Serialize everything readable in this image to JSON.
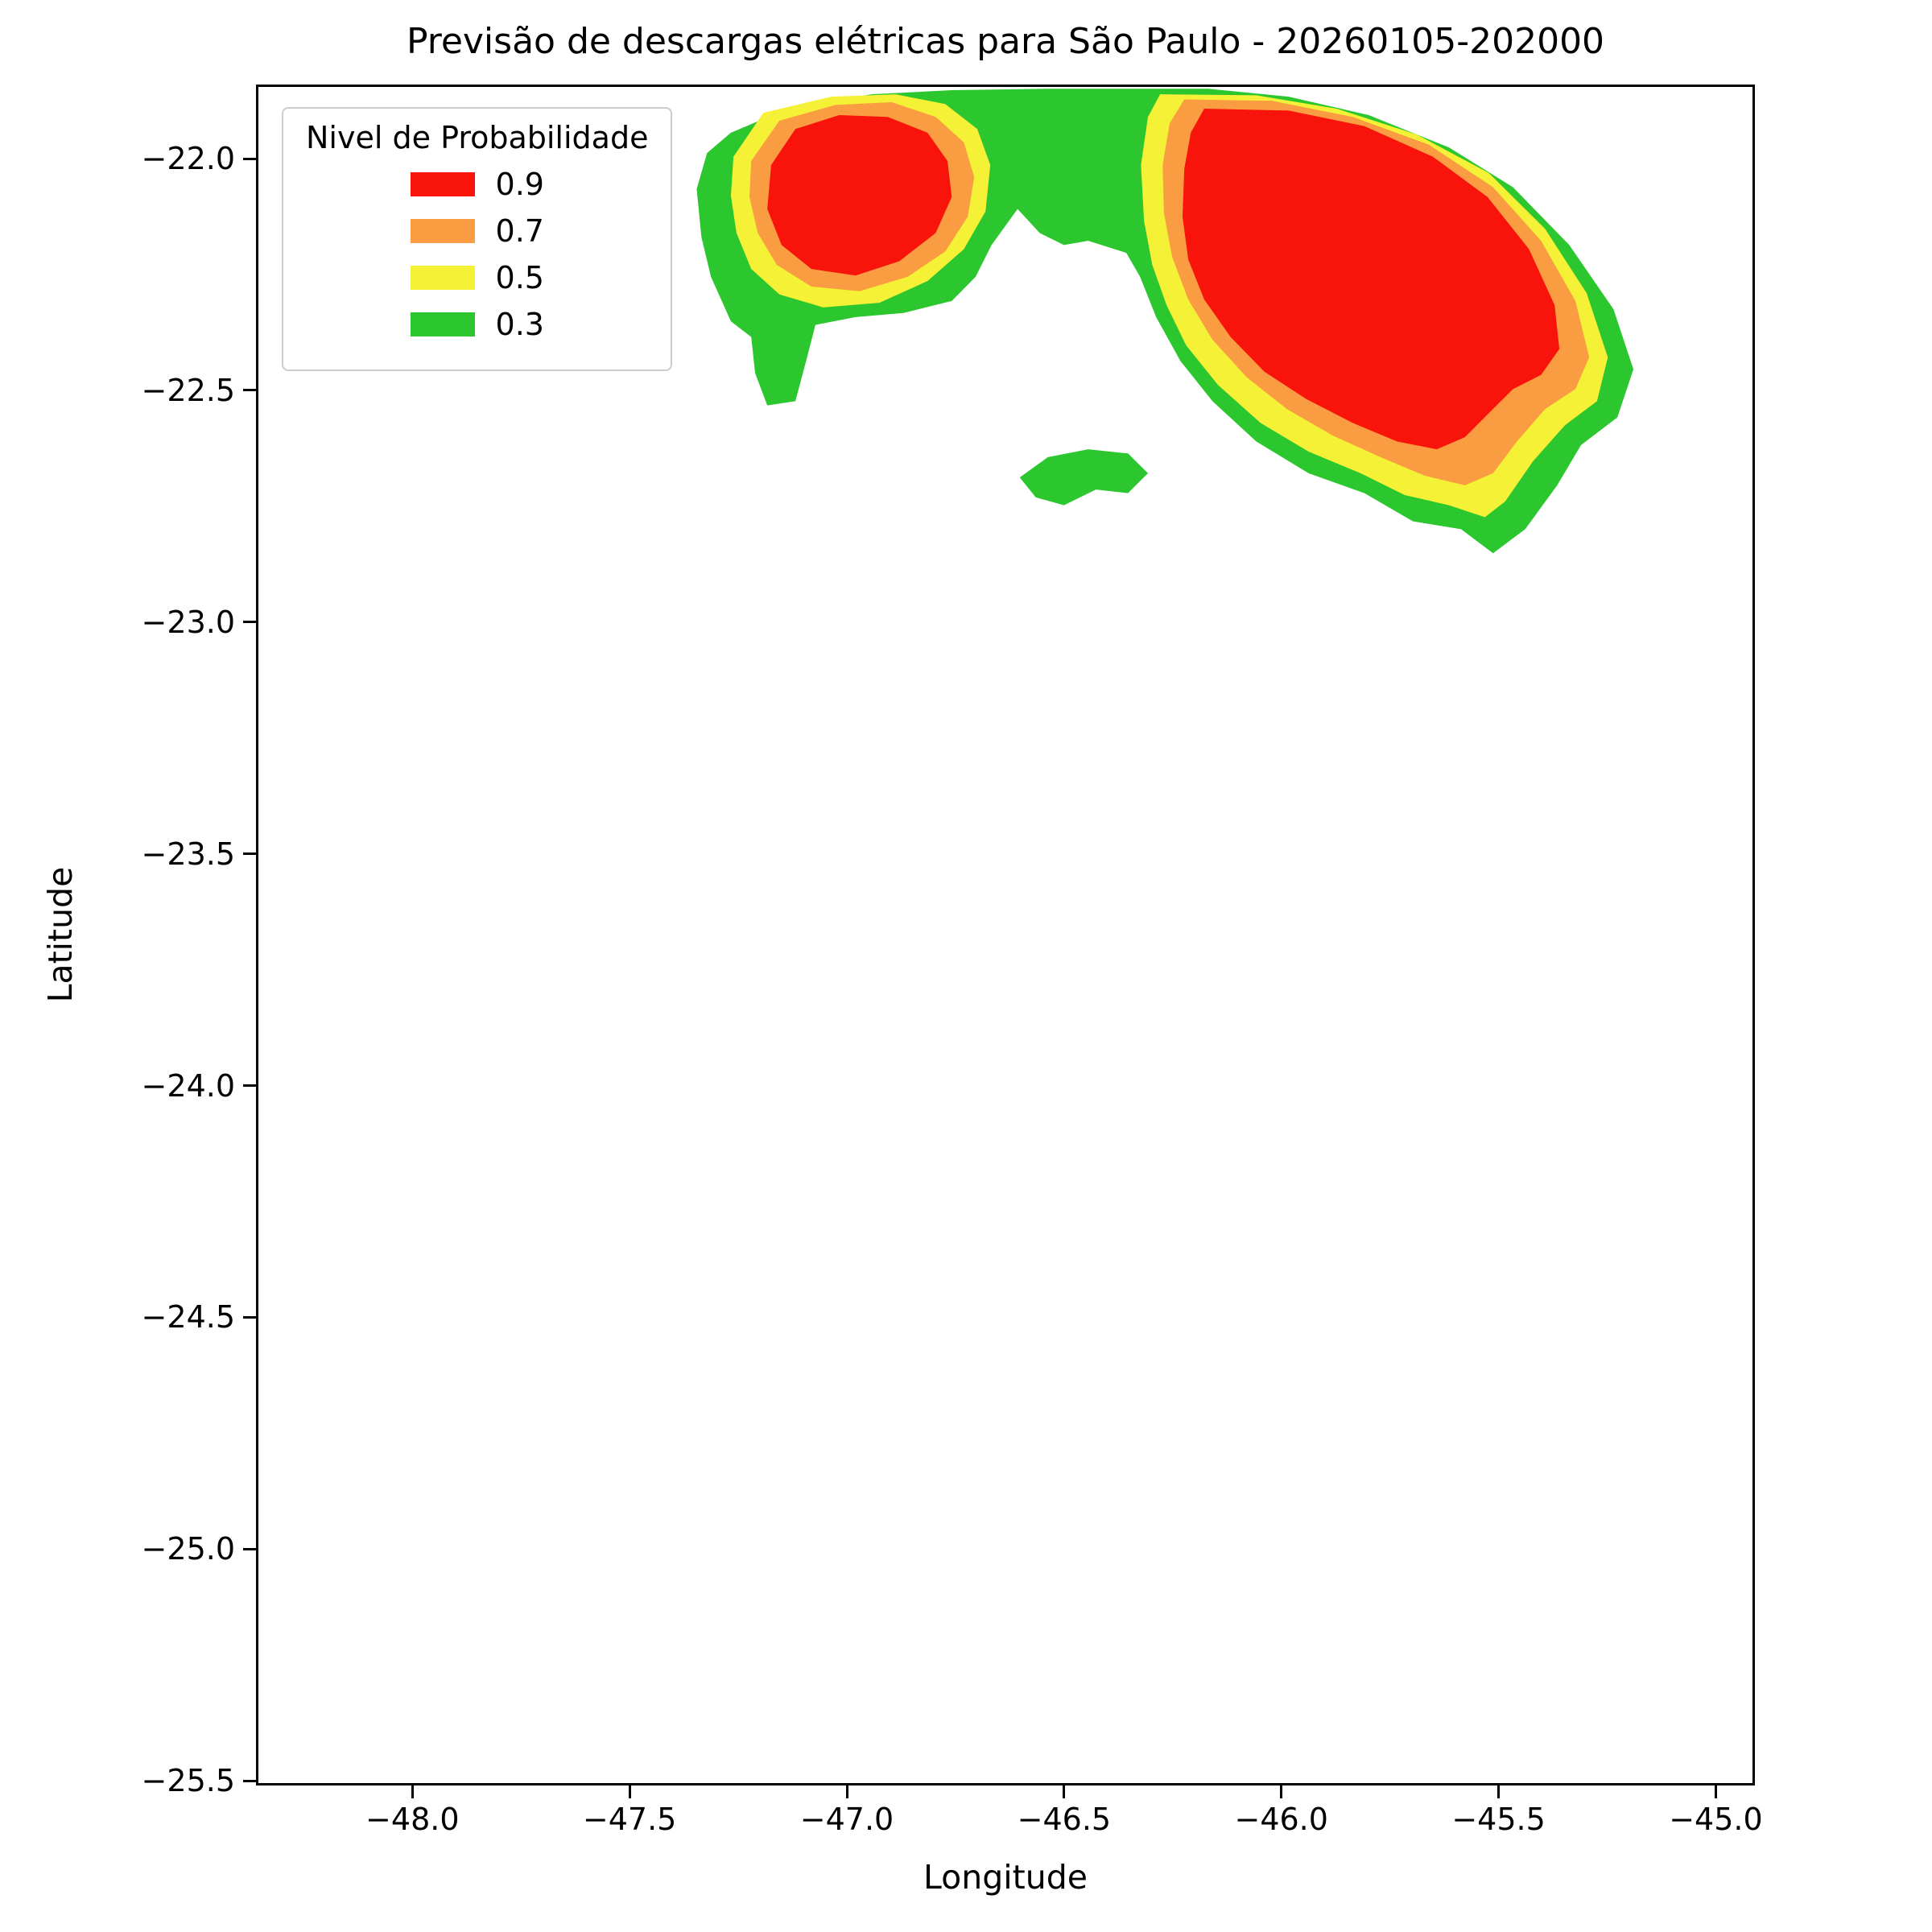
{
  "chart_data": {
    "type": "contour-map",
    "title": "Previsão de descargas elétricas para São Paulo - 20260105-202000",
    "xlabel": "Longitude",
    "ylabel": "Latitude",
    "xlim": [
      -48.36,
      -44.91
    ],
    "ylim": [
      -25.51,
      -21.84
    ],
    "grid": false,
    "xticks": [
      -48.0,
      -47.5,
      -47.0,
      -46.5,
      -46.0,
      -45.5,
      -45.0
    ],
    "xtick_labels": [
      "−48.0",
      "−47.5",
      "−47.0",
      "−46.5",
      "−46.0",
      "−45.5",
      "−45.0"
    ],
    "yticks": [
      -22.0,
      -22.5,
      -23.0,
      -23.5,
      -24.0,
      -24.5,
      -25.0,
      -25.5
    ],
    "ytick_labels": [
      "−22.0",
      "−22.5",
      "−23.0",
      "−23.5",
      "−24.0",
      "−24.5",
      "−25.0",
      "−25.5"
    ],
    "legend": {
      "title": "Nivel de Probabilidade",
      "position": "upper left",
      "entries": [
        {
          "label": "0.9",
          "color": "#f8140a"
        },
        {
          "label": "0.7",
          "color": "#f99c42"
        },
        {
          "label": "0.5",
          "color": "#f5f136"
        },
        {
          "label": "0.3",
          "color": "#2cc72e"
        }
      ]
    },
    "levels": [
      {
        "value": 0.3,
        "color": "#2cc72e"
      },
      {
        "value": 0.5,
        "color": "#f5f136"
      },
      {
        "value": 0.7,
        "color": "#f99c42"
      },
      {
        "value": 0.9,
        "color": "#f8140a"
      }
    ],
    "regions": [
      {
        "name": "prob-0.3-main",
        "level": 0.3,
        "points": [
          [
            -47.269,
            -21.939
          ],
          [
            -47.13,
            -21.884
          ],
          [
            -46.944,
            -21.856
          ],
          [
            -46.759,
            -21.847
          ],
          [
            -46.537,
            -21.844
          ],
          [
            -46.167,
            -21.844
          ],
          [
            -45.981,
            -21.861
          ],
          [
            -45.796,
            -21.901
          ],
          [
            -45.611,
            -21.971
          ],
          [
            -45.463,
            -22.057
          ],
          [
            -45.333,
            -22.182
          ],
          [
            -45.231,
            -22.321
          ],
          [
            -45.185,
            -22.451
          ],
          [
            -45.222,
            -22.555
          ],
          [
            -45.306,
            -22.615
          ],
          [
            -45.361,
            -22.702
          ],
          [
            -45.435,
            -22.797
          ],
          [
            -45.509,
            -22.849
          ],
          [
            -45.583,
            -22.797
          ],
          [
            -45.694,
            -22.78
          ],
          [
            -45.806,
            -22.719
          ],
          [
            -45.935,
            -22.676
          ],
          [
            -46.056,
            -22.607
          ],
          [
            -46.157,
            -22.52
          ],
          [
            -46.231,
            -22.433
          ],
          [
            -46.287,
            -22.338
          ],
          [
            -46.324,
            -22.251
          ],
          [
            -46.356,
            -22.199
          ],
          [
            -46.444,
            -22.173
          ],
          [
            -46.5,
            -22.182
          ],
          [
            -46.556,
            -22.156
          ],
          [
            -46.607,
            -22.104
          ],
          [
            -46.667,
            -22.182
          ],
          [
            -46.704,
            -22.251
          ],
          [
            -46.759,
            -22.303
          ],
          [
            -46.87,
            -22.329
          ],
          [
            -46.981,
            -22.338
          ],
          [
            -47.074,
            -22.355
          ],
          [
            -47.093,
            -22.425
          ],
          [
            -47.12,
            -22.52
          ],
          [
            -47.185,
            -22.529
          ],
          [
            -47.213,
            -22.459
          ],
          [
            -47.222,
            -22.381
          ],
          [
            -47.269,
            -22.347
          ],
          [
            -47.315,
            -22.251
          ],
          [
            -47.337,
            -22.165
          ],
          [
            -47.348,
            -22.061
          ],
          [
            -47.324,
            -21.983
          ]
        ]
      },
      {
        "name": "prob-0.3-small-island",
        "level": 0.3,
        "points": [
          [
            -46.602,
            -22.685
          ],
          [
            -46.537,
            -22.641
          ],
          [
            -46.444,
            -22.624
          ],
          [
            -46.352,
            -22.633
          ],
          [
            -46.306,
            -22.676
          ],
          [
            -46.352,
            -22.719
          ],
          [
            -46.426,
            -22.711
          ],
          [
            -46.5,
            -22.745
          ],
          [
            -46.565,
            -22.728
          ]
        ]
      },
      {
        "name": "prob-0.5-west",
        "level": 0.5,
        "points": [
          [
            -47.263,
            -21.991
          ],
          [
            -47.194,
            -21.896
          ],
          [
            -47.037,
            -21.861
          ],
          [
            -46.889,
            -21.856
          ],
          [
            -46.774,
            -21.877
          ],
          [
            -46.7,
            -21.931
          ],
          [
            -46.67,
            -22.009
          ],
          [
            -46.681,
            -22.109
          ],
          [
            -46.731,
            -22.191
          ],
          [
            -46.815,
            -22.26
          ],
          [
            -46.926,
            -22.307
          ],
          [
            -47.056,
            -22.317
          ],
          [
            -47.157,
            -22.289
          ],
          [
            -47.222,
            -22.234
          ],
          [
            -47.256,
            -22.156
          ],
          [
            -47.269,
            -22.075
          ]
        ]
      },
      {
        "name": "prob-0.5-east",
        "level": 0.5,
        "points": [
          [
            -46.306,
            -21.905
          ],
          [
            -46.278,
            -21.856
          ],
          [
            -46.056,
            -21.858
          ],
          [
            -45.87,
            -21.887
          ],
          [
            -45.685,
            -21.943
          ],
          [
            -45.519,
            -22.026
          ],
          [
            -45.389,
            -22.147
          ],
          [
            -45.293,
            -22.286
          ],
          [
            -45.244,
            -22.425
          ],
          [
            -45.269,
            -22.52
          ],
          [
            -45.343,
            -22.572
          ],
          [
            -45.417,
            -22.65
          ],
          [
            -45.481,
            -22.737
          ],
          [
            -45.528,
            -22.771
          ],
          [
            -45.611,
            -22.745
          ],
          [
            -45.713,
            -22.723
          ],
          [
            -45.815,
            -22.676
          ],
          [
            -45.935,
            -22.629
          ],
          [
            -46.046,
            -22.567
          ],
          [
            -46.144,
            -22.485
          ],
          [
            -46.218,
            -22.399
          ],
          [
            -46.263,
            -22.312
          ],
          [
            -46.296,
            -22.225
          ],
          [
            -46.315,
            -22.13
          ],
          [
            -46.322,
            -22.009
          ]
        ]
      },
      {
        "name": "prob-0.7-west",
        "level": 0.7,
        "points": [
          [
            -47.222,
            -22.0
          ],
          [
            -47.157,
            -21.913
          ],
          [
            -47.028,
            -21.879
          ],
          [
            -46.898,
            -21.873
          ],
          [
            -46.796,
            -21.905
          ],
          [
            -46.731,
            -21.96
          ],
          [
            -46.707,
            -22.035
          ],
          [
            -46.722,
            -22.121
          ],
          [
            -46.774,
            -22.196
          ],
          [
            -46.861,
            -22.251
          ],
          [
            -46.972,
            -22.282
          ],
          [
            -47.083,
            -22.272
          ],
          [
            -47.163,
            -22.225
          ],
          [
            -47.207,
            -22.156
          ],
          [
            -47.226,
            -22.078
          ]
        ]
      },
      {
        "name": "prob-0.7-east",
        "level": 0.7,
        "points": [
          [
            -46.256,
            -21.919
          ],
          [
            -46.222,
            -21.867
          ],
          [
            -46.019,
            -21.87
          ],
          [
            -45.833,
            -21.905
          ],
          [
            -45.657,
            -21.965
          ],
          [
            -45.509,
            -22.057
          ],
          [
            -45.398,
            -22.173
          ],
          [
            -45.319,
            -22.303
          ],
          [
            -45.287,
            -22.425
          ],
          [
            -45.319,
            -22.494
          ],
          [
            -45.389,
            -22.537
          ],
          [
            -45.454,
            -22.607
          ],
          [
            -45.509,
            -22.676
          ],
          [
            -45.574,
            -22.702
          ],
          [
            -45.667,
            -22.681
          ],
          [
            -45.769,
            -22.641
          ],
          [
            -45.88,
            -22.594
          ],
          [
            -45.985,
            -22.537
          ],
          [
            -46.078,
            -22.468
          ],
          [
            -46.157,
            -22.387
          ],
          [
            -46.213,
            -22.3
          ],
          [
            -46.25,
            -22.208
          ],
          [
            -46.269,
            -22.113
          ],
          [
            -46.272,
            -22.009
          ]
        ]
      },
      {
        "name": "prob-0.9-west",
        "level": 0.9,
        "points": [
          [
            -47.176,
            -22.009
          ],
          [
            -47.12,
            -21.931
          ],
          [
            -47.019,
            -21.901
          ],
          [
            -46.907,
            -21.905
          ],
          [
            -46.815,
            -21.939
          ],
          [
            -46.769,
            -22.0
          ],
          [
            -46.759,
            -22.078
          ],
          [
            -46.796,
            -22.156
          ],
          [
            -46.88,
            -22.217
          ],
          [
            -46.981,
            -22.248
          ],
          [
            -47.083,
            -22.234
          ],
          [
            -47.152,
            -22.182
          ],
          [
            -47.185,
            -22.104
          ]
        ]
      },
      {
        "name": "prob-0.9-east",
        "level": 0.9,
        "points": [
          [
            -46.207,
            -21.939
          ],
          [
            -46.176,
            -21.887
          ],
          [
            -45.981,
            -21.891
          ],
          [
            -45.806,
            -21.925
          ],
          [
            -45.648,
            -21.991
          ],
          [
            -45.522,
            -22.078
          ],
          [
            -45.426,
            -22.191
          ],
          [
            -45.367,
            -22.312
          ],
          [
            -45.356,
            -22.407
          ],
          [
            -45.398,
            -22.463
          ],
          [
            -45.463,
            -22.494
          ],
          [
            -45.519,
            -22.546
          ],
          [
            -45.574,
            -22.598
          ],
          [
            -45.639,
            -22.624
          ],
          [
            -45.731,
            -22.607
          ],
          [
            -45.833,
            -22.567
          ],
          [
            -45.941,
            -22.515
          ],
          [
            -46.037,
            -22.456
          ],
          [
            -46.115,
            -22.381
          ],
          [
            -46.176,
            -22.3
          ],
          [
            -46.213,
            -22.213
          ],
          [
            -46.226,
            -22.121
          ],
          [
            -46.222,
            -22.017
          ]
        ]
      }
    ]
  },
  "colors": {
    "background": "#ffffff",
    "axes_edge": "#000000",
    "legend_border": "#cccccc"
  }
}
